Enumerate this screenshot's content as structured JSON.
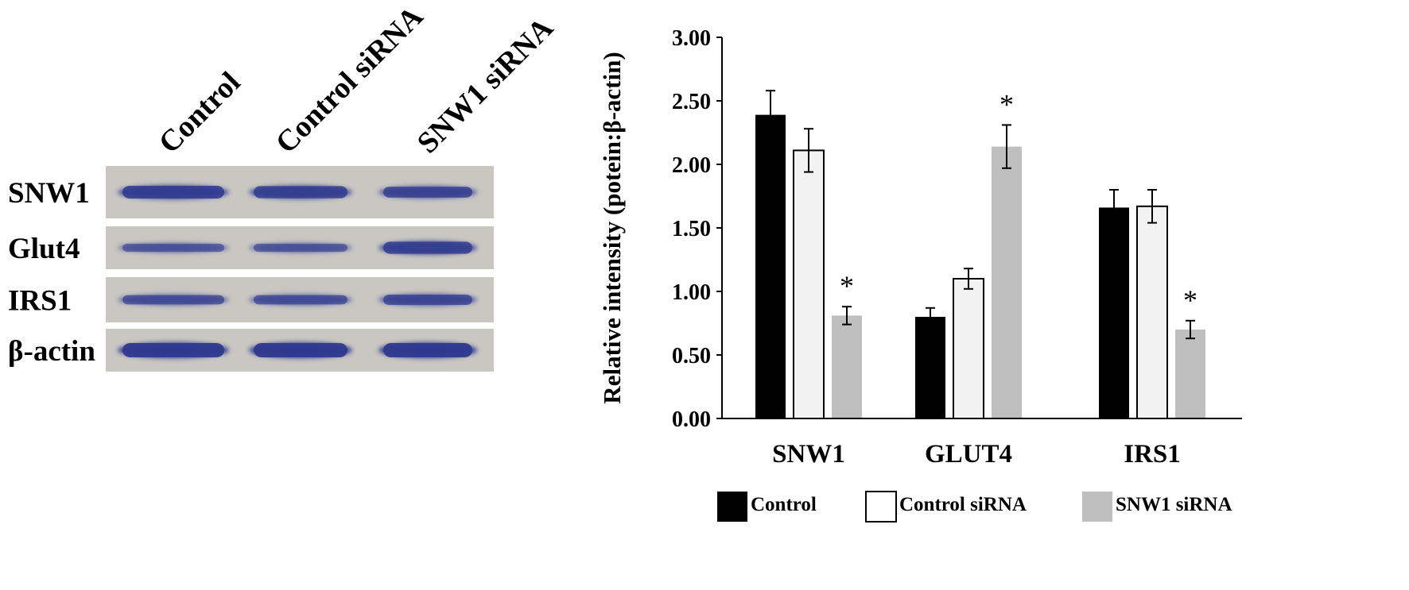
{
  "blot": {
    "lanes": [
      "Control",
      "Control siRNA",
      "SNW1 siRNA"
    ],
    "rows": [
      {
        "name": "SNW1",
        "intensity": [
          0.85,
          0.8,
          0.7
        ]
      },
      {
        "name": "Glut4",
        "intensity": [
          0.45,
          0.45,
          0.8
        ]
      },
      {
        "name": "IRS1",
        "intensity": [
          0.55,
          0.55,
          0.65
        ]
      },
      {
        "name": "β-actin",
        "intensity": [
          1.0,
          1.0,
          1.0
        ]
      }
    ],
    "colors": {
      "membrane": "#c9c7c2",
      "band": "#2f3a8f"
    }
  },
  "chart_data": {
    "type": "bar",
    "ylabel": "Relative intensity (potein:β-actin)",
    "ylim": [
      0,
      3
    ],
    "yticks": [
      "0.00",
      "0.50",
      "1.00",
      "1.50",
      "2.00",
      "2.50",
      "3.00"
    ],
    "categories": [
      "SNW1",
      "GLUT4",
      "IRS1"
    ],
    "series": [
      {
        "name": "Control",
        "values": [
          2.39,
          0.8,
          1.66
        ],
        "errors": [
          0.19,
          0.07,
          0.14
        ],
        "color": "#000000",
        "fill": "#000000"
      },
      {
        "name": "Control siRNA",
        "values": [
          2.11,
          1.1,
          1.67
        ],
        "errors": [
          0.17,
          0.08,
          0.13
        ],
        "color": "#000000",
        "fill": "#f2f2f2"
      },
      {
        "name": "SNW1 siRNA",
        "values": [
          0.81,
          2.14,
          0.7
        ],
        "errors": [
          0.07,
          0.17,
          0.07
        ],
        "color": "#bfbfbf",
        "fill": "#bfbfbf"
      }
    ],
    "annotations": [
      {
        "category": "SNW1",
        "series": "SNW1 siRNA",
        "text": "*"
      },
      {
        "category": "GLUT4",
        "series": "SNW1 siRNA",
        "text": "*"
      },
      {
        "category": "IRS1",
        "series": "SNW1 siRNA",
        "text": "*"
      }
    ],
    "legend_position": "bottom",
    "grid": false
  }
}
